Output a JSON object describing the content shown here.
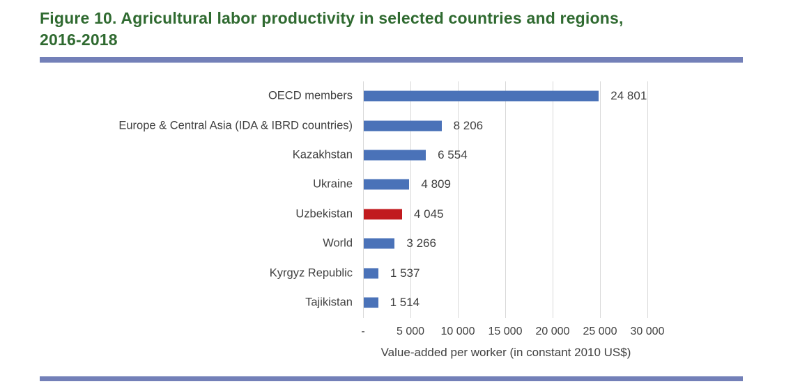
{
  "title": {
    "text": "Figure 10. Agricultural labor productivity in selected countries and regions,\n2016-2018"
  },
  "colors": {
    "title_green": "#2F6A30",
    "rule_blue": "#7380B8",
    "bar_blue": "#4A72B8",
    "bar_red": "#C11A1E",
    "grid_gray": "#D9D9D9",
    "text_gray": "#404040"
  },
  "chart_data": {
    "type": "bar",
    "orientation": "horizontal",
    "title": "Figure 10. Agricultural labor productivity in selected countries and regions, 2016-2018",
    "categories": [
      "OECD members",
      "Europe & Central Asia (IDA & IBRD countries)",
      "Kazakhstan",
      "Ukraine",
      "Uzbekistan",
      "World",
      "Kyrgyz Republic",
      "Tajikistan"
    ],
    "values": [
      24801,
      8206,
      6554,
      4809,
      4045,
      3266,
      1537,
      1514
    ],
    "value_labels": [
      "24 801",
      "8 206",
      "6 554",
      "4 809",
      "4 045",
      "3 266",
      "1 537",
      "1 514"
    ],
    "highlight_category": "Uzbekistan",
    "highlight_index": 4,
    "x_ticks": [
      "-",
      "5 000",
      "10 000",
      "15 000",
      "20 000",
      "25 000",
      "30 000"
    ],
    "x_tick_values": [
      0,
      5000,
      10000,
      15000,
      20000,
      25000,
      30000
    ],
    "xlabel": "Value-added per worker (in constant 2010 US$)",
    "xlim": [
      0,
      30000
    ],
    "grid": "vertical-only",
    "legend": "none"
  }
}
